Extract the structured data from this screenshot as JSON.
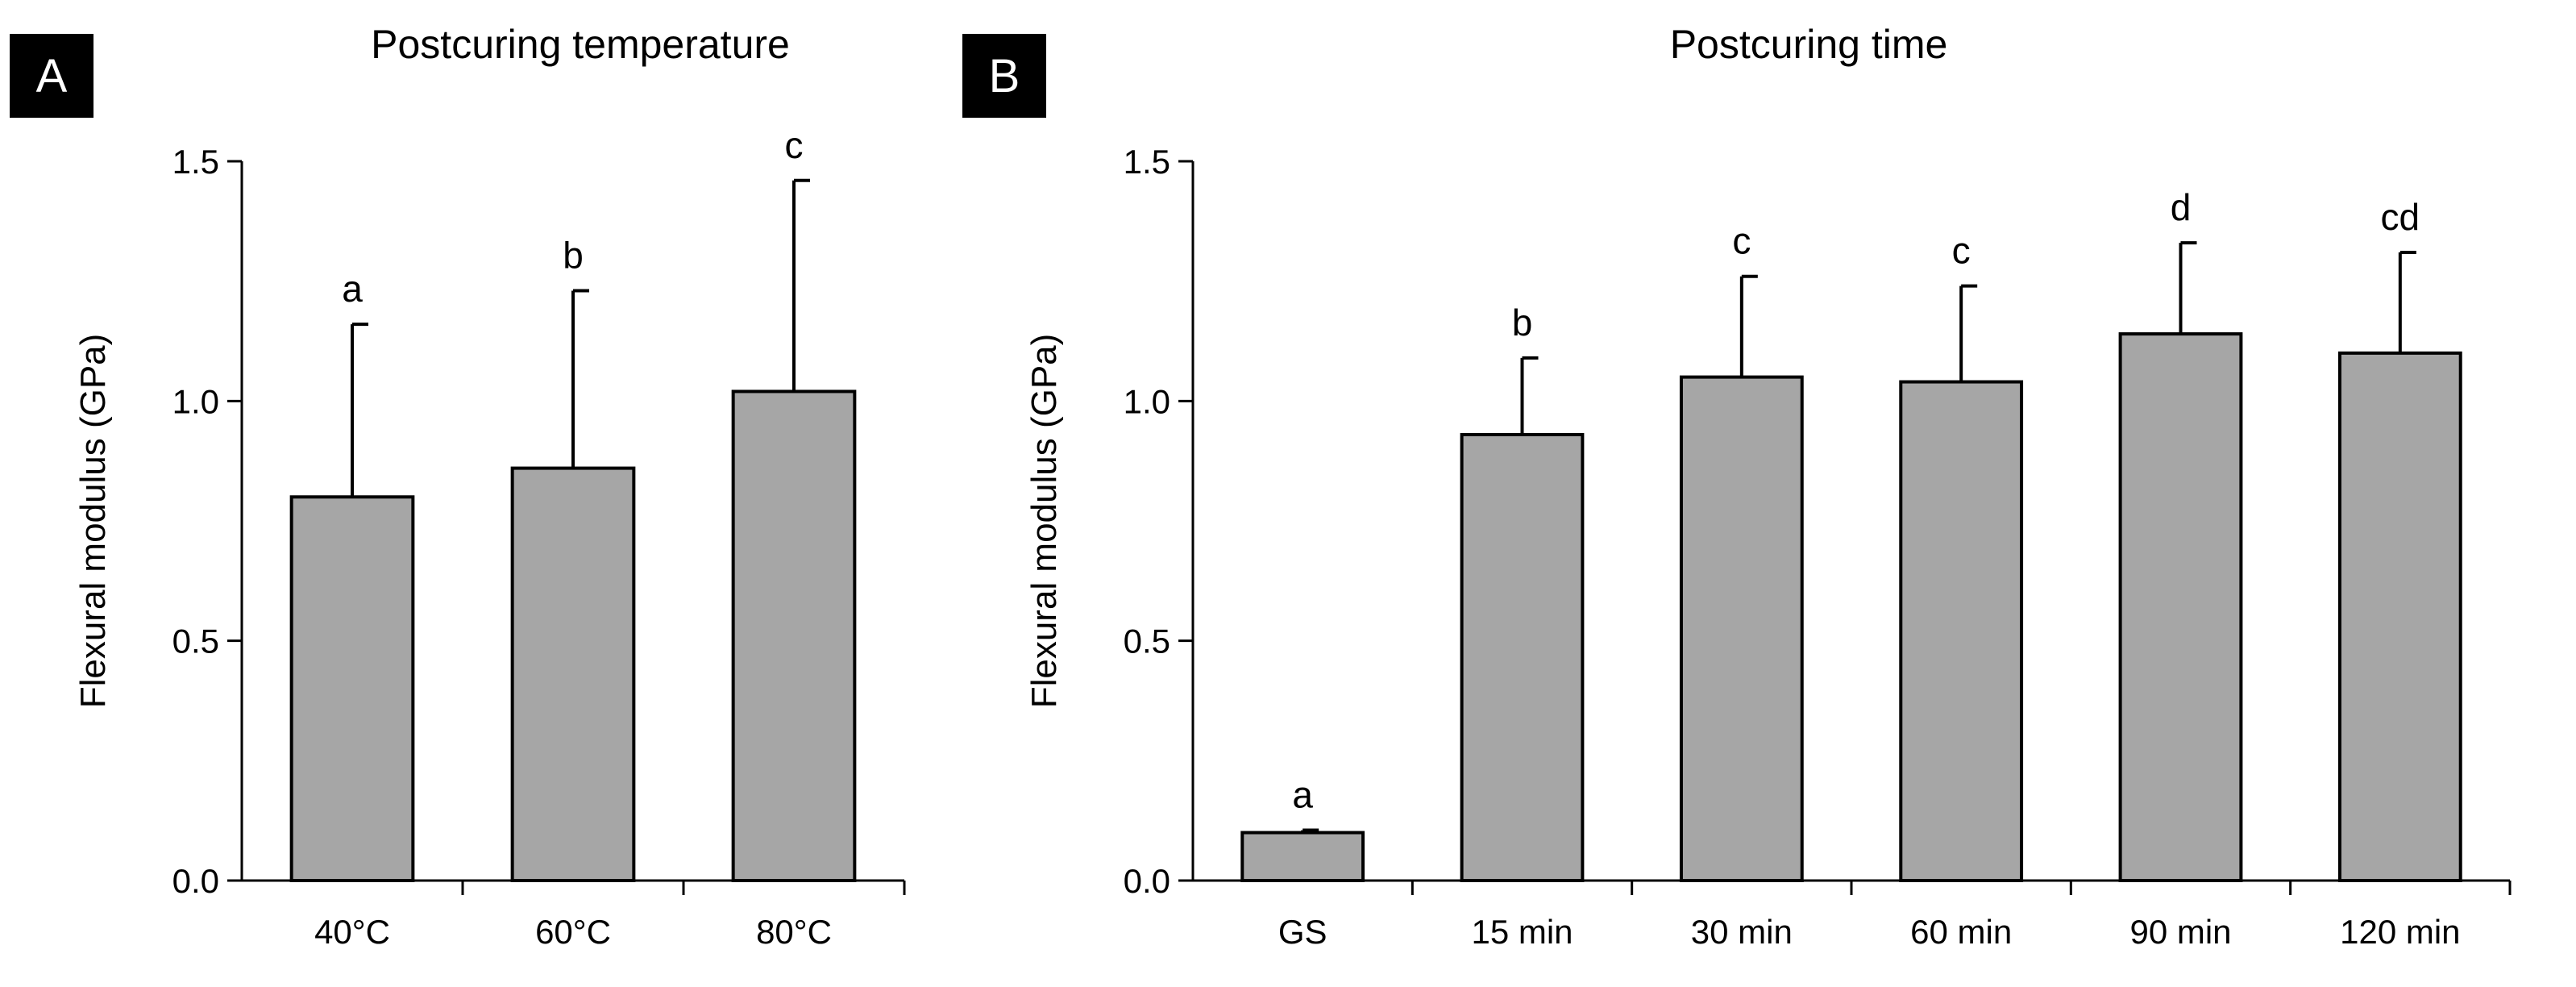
{
  "colors": {
    "bar_fill": "#a6a6a6",
    "bar_stroke": "#000000",
    "axis": "#000000",
    "label_box": "#000000"
  },
  "chart_data": [
    {
      "panel_label": "A",
      "type": "bar",
      "title": "Postcuring temperature",
      "xlabel": "",
      "ylabel": "Flexural modulus (GPa)",
      "ylim": [
        0,
        1.5
      ],
      "yticks": [
        "0.0",
        "0.5",
        "1.0",
        "1.5"
      ],
      "yticks_values": [
        0,
        0.5,
        1.0,
        1.5
      ],
      "categories": [
        "40°C",
        "60°C",
        "80°C"
      ],
      "values": [
        0.8,
        0.86,
        1.02
      ],
      "errors": [
        0.36,
        0.37,
        0.44
      ],
      "annotations": [
        "a",
        "b",
        "c"
      ],
      "grid": false,
      "legend": "none"
    },
    {
      "panel_label": "B",
      "type": "bar",
      "title": "Postcuring time",
      "xlabel": "",
      "ylabel": "Flexural modulus (GPa)",
      "ylim": [
        0,
        1.5
      ],
      "yticks": [
        "0.0",
        "0.5",
        "1.0",
        "1.5"
      ],
      "yticks_values": [
        0,
        0.5,
        1.0,
        1.5
      ],
      "categories": [
        "GS",
        "15 min",
        "30 min",
        "60 min",
        "90 min",
        "120 min"
      ],
      "values": [
        0.1,
        0.93,
        1.05,
        1.04,
        1.14,
        1.1
      ],
      "errors": [
        0.005,
        0.16,
        0.21,
        0.2,
        0.19,
        0.21
      ],
      "annotations": [
        "a",
        "b",
        "c",
        "c",
        "d",
        "cd"
      ],
      "grid": false,
      "legend": "none"
    }
  ]
}
